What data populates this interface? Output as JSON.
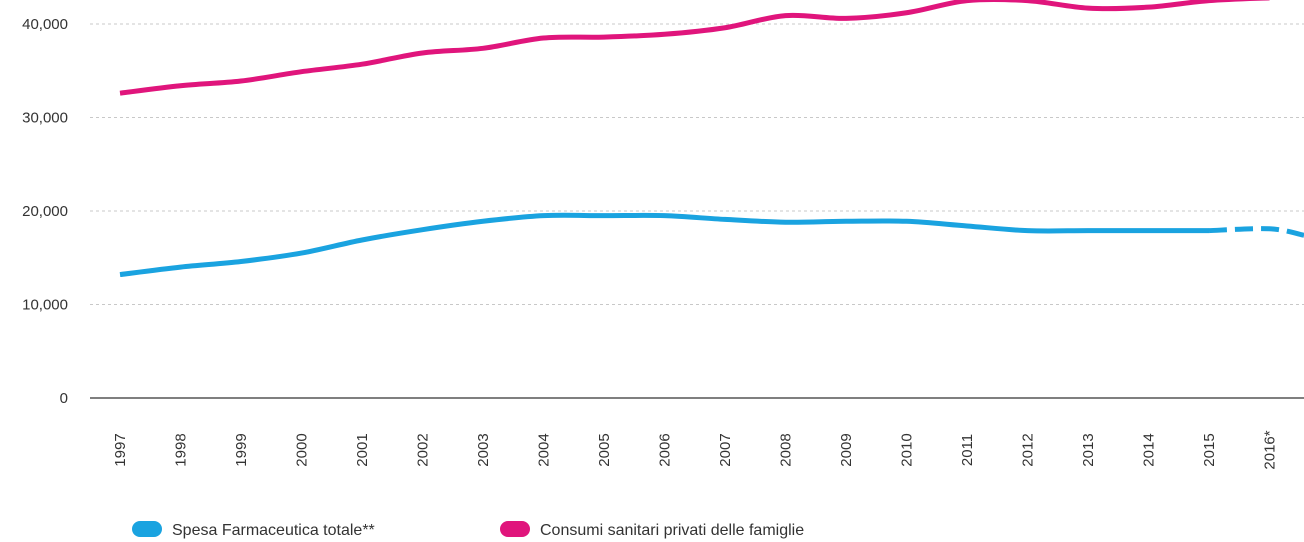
{
  "chart_data": {
    "type": "line",
    "title": "",
    "xlabel": "",
    "ylabel": "",
    "categories": [
      "1997",
      "1998",
      "1999",
      "2000",
      "2001",
      "2002",
      "2003",
      "2004",
      "2005",
      "2006",
      "2007",
      "2008",
      "2009",
      "2010",
      "2011",
      "2012",
      "2013",
      "2014",
      "2015",
      "2016*"
    ],
    "ylim": [
      0,
      45000
    ],
    "yticks": [
      0,
      10000,
      20000,
      30000,
      40000
    ],
    "ytick_labels": [
      "0",
      "10,000",
      "20,000",
      "30,000",
      "40,000"
    ],
    "grid": true,
    "legend_position": "bottom-left",
    "series": [
      {
        "name": "Spesa Farmaceutica totale**",
        "color": "#1aa3e0",
        "values": [
          13200,
          14000,
          14600,
          15500,
          16900,
          18000,
          18900,
          19500,
          19500,
          19500,
          19100,
          18800,
          18900,
          18900,
          18400,
          17900,
          17900,
          17900,
          17900,
          18100
        ],
        "dashed_from": "2015"
      },
      {
        "name": "Consumi sanitari privati delle famiglie",
        "color": "#e0157c",
        "values": [
          32600,
          33400,
          33900,
          34900,
          35700,
          36900,
          37400,
          38500,
          38600,
          38900,
          39600,
          40900,
          40600,
          41200,
          42500,
          42500,
          41700,
          41800,
          42500,
          42800
        ]
      }
    ]
  }
}
